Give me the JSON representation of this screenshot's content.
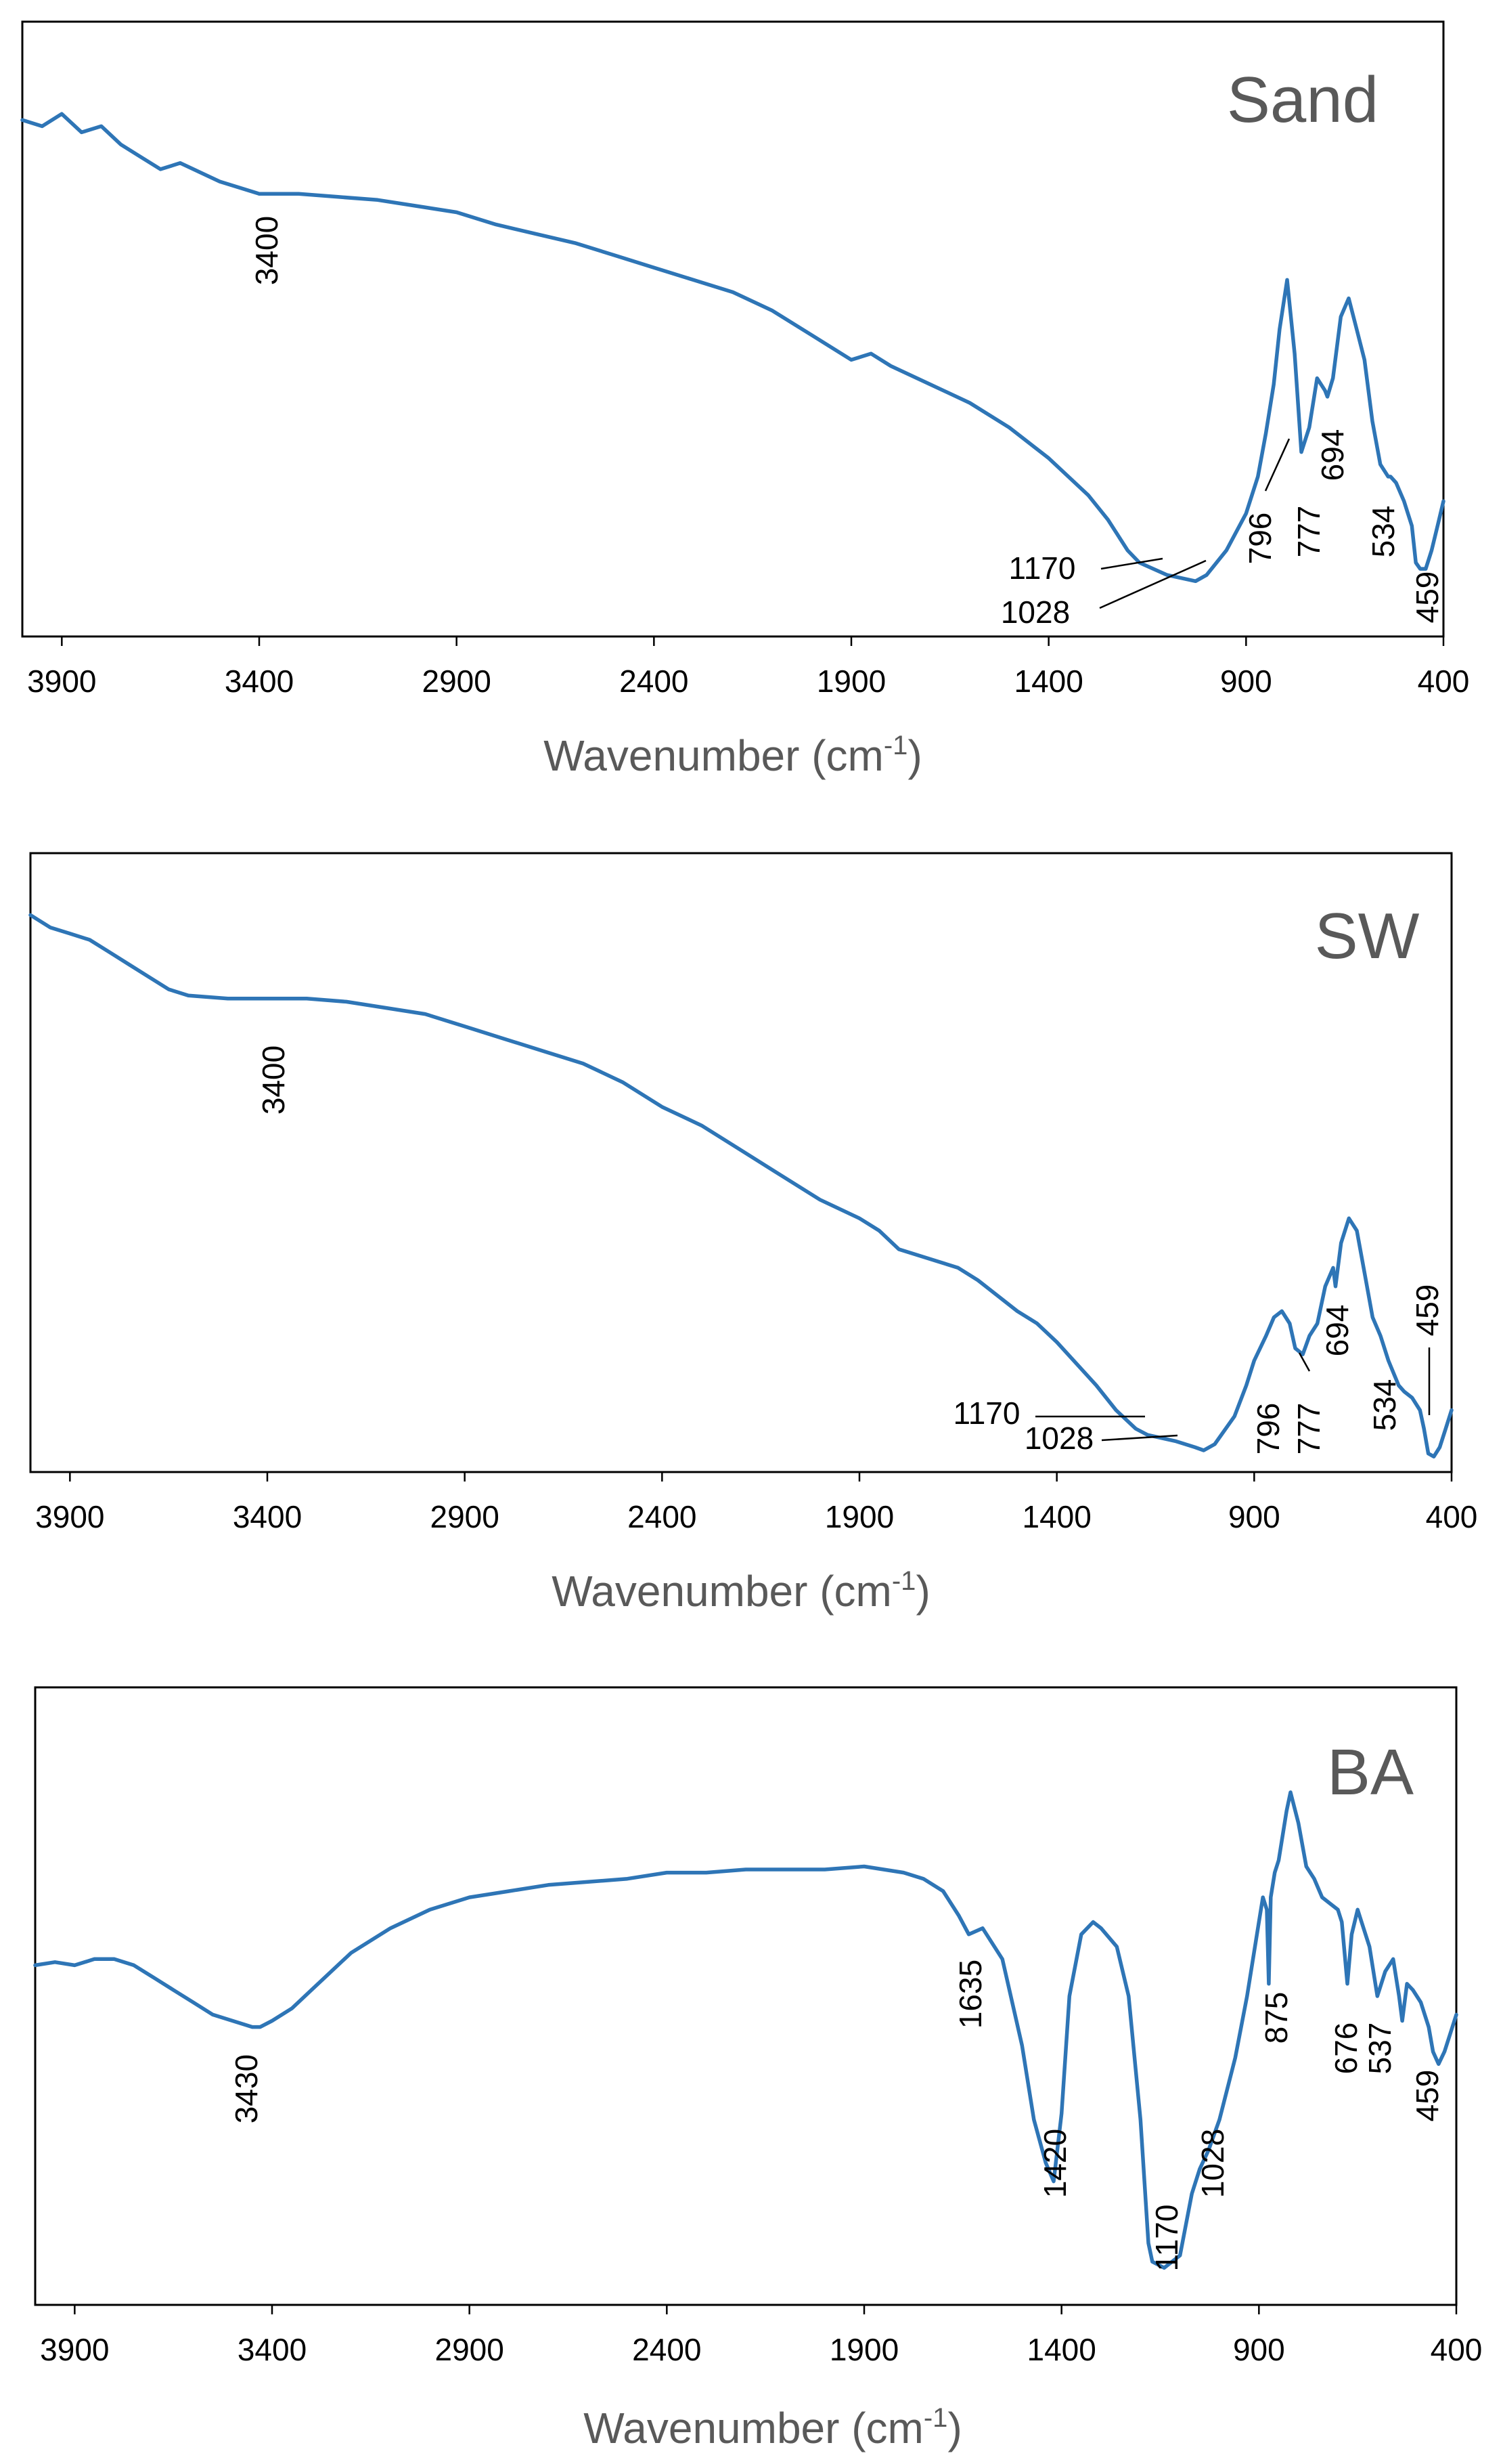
{
  "colors": {
    "series": "#2e75b6",
    "frame": "#000000",
    "text": "#000000",
    "label_gray": "#595959"
  },
  "chart_data": [
    {
      "type": "line",
      "title": "Sand",
      "xlabel": "Wavenumber (cm",
      "xlabel_sup": "-1",
      "xlabel_close": ")",
      "xlim": [
        4000,
        400
      ],
      "ylim": [
        0,
        1
      ],
      "y_axis_visible": false,
      "grid": false,
      "xticks": [
        3900,
        3400,
        2900,
        2400,
        1900,
        1400,
        900,
        400
      ],
      "xtick_labels": [
        "3900",
        "3400",
        "2900",
        "2400",
        "1900",
        "1400",
        "900",
        "400"
      ],
      "series": [
        {
          "name": "Sand",
          "x": [
            4000,
            3950,
            3900,
            3850,
            3800,
            3750,
            3700,
            3650,
            3600,
            3500,
            3400,
            3300,
            3200,
            3100,
            3000,
            2900,
            2800,
            2700,
            2600,
            2500,
            2400,
            2300,
            2200,
            2100,
            2000,
            1900,
            1850,
            1800,
            1700,
            1600,
            1500,
            1400,
            1300,
            1250,
            1200,
            1170,
            1100,
            1028,
            1000,
            950,
            900,
            870,
            850,
            830,
            815,
            796,
            777,
            760,
            740,
            720,
            700,
            694,
            680,
            660,
            640,
            620,
            600,
            580,
            560,
            540,
            534,
            520,
            500,
            480,
            470,
            459,
            445,
            430,
            415,
            400
          ],
          "y": [
            0.84,
            0.83,
            0.85,
            0.82,
            0.83,
            0.8,
            0.78,
            0.76,
            0.77,
            0.74,
            0.72,
            0.72,
            0.715,
            0.71,
            0.7,
            0.69,
            0.67,
            0.655,
            0.64,
            0.62,
            0.6,
            0.58,
            0.56,
            0.53,
            0.49,
            0.45,
            0.46,
            0.44,
            0.41,
            0.38,
            0.34,
            0.29,
            0.23,
            0.19,
            0.14,
            0.12,
            0.1,
            0.09,
            0.1,
            0.14,
            0.2,
            0.26,
            0.33,
            0.41,
            0.5,
            0.58,
            0.46,
            0.3,
            0.34,
            0.42,
            0.4,
            0.39,
            0.42,
            0.52,
            0.55,
            0.5,
            0.45,
            0.35,
            0.28,
            0.26,
            0.26,
            0.25,
            0.22,
            0.18,
            0.12,
            0.11,
            0.11,
            0.14,
            0.18,
            0.22
          ]
        }
      ],
      "annotations": [
        {
          "id": "a3400",
          "text": "3400",
          "at": 3400
        },
        {
          "id": "a1170",
          "text": "1170",
          "at": 1170
        },
        {
          "id": "a1028",
          "text": "1028",
          "at": 1028
        },
        {
          "id": "a796",
          "text": "796",
          "at": 796
        },
        {
          "id": "a777",
          "text": "777",
          "at": 777
        },
        {
          "id": "a694",
          "text": "694",
          "at": 694
        },
        {
          "id": "a534",
          "text": "534",
          "at": 534
        },
        {
          "id": "a459",
          "text": "459",
          "at": 459
        }
      ]
    },
    {
      "type": "line",
      "title": "SW",
      "xlabel": "Wavenumber (cm",
      "xlabel_sup": "-1",
      "xlabel_close": ")",
      "xlim": [
        4000,
        400
      ],
      "ylim": [
        0,
        1
      ],
      "y_axis_visible": false,
      "grid": false,
      "xticks": [
        3900,
        3400,
        2900,
        2400,
        1900,
        1400,
        900,
        400
      ],
      "xtick_labels": [
        "3900",
        "3400",
        "2900",
        "2400",
        "1900",
        "1400",
        "900",
        "400"
      ],
      "series": [
        {
          "name": "SW",
          "x": [
            4000,
            3950,
            3900,
            3850,
            3800,
            3750,
            3700,
            3650,
            3600,
            3500,
            3400,
            3300,
            3200,
            3100,
            3000,
            2900,
            2800,
            2700,
            2600,
            2500,
            2400,
            2300,
            2200,
            2100,
            2000,
            1900,
            1850,
            1800,
            1700,
            1650,
            1600,
            1500,
            1450,
            1400,
            1300,
            1250,
            1200,
            1170,
            1100,
            1050,
            1028,
            1000,
            950,
            920,
            900,
            870,
            850,
            830,
            810,
            796,
            777,
            760,
            740,
            720,
            700,
            694,
            680,
            660,
            640,
            620,
            600,
            580,
            560,
            534,
            520,
            500,
            480,
            470,
            459,
            445,
            430,
            415,
            400
          ],
          "y": [
            0.9,
            0.88,
            0.87,
            0.86,
            0.84,
            0.82,
            0.8,
            0.78,
            0.77,
            0.765,
            0.765,
            0.765,
            0.76,
            0.75,
            0.74,
            0.72,
            0.7,
            0.68,
            0.66,
            0.63,
            0.59,
            0.56,
            0.52,
            0.48,
            0.44,
            0.41,
            0.39,
            0.36,
            0.34,
            0.33,
            0.31,
            0.26,
            0.24,
            0.21,
            0.14,
            0.1,
            0.07,
            0.06,
            0.05,
            0.04,
            0.035,
            0.045,
            0.09,
            0.14,
            0.18,
            0.22,
            0.25,
            0.26,
            0.24,
            0.2,
            0.19,
            0.22,
            0.24,
            0.3,
            0.33,
            0.3,
            0.37,
            0.41,
            0.39,
            0.32,
            0.25,
            0.22,
            0.18,
            0.14,
            0.13,
            0.12,
            0.1,
            0.07,
            0.03,
            0.025,
            0.04,
            0.07,
            0.1
          ]
        }
      ],
      "annotations": [
        {
          "id": "a3400",
          "text": "3400",
          "at": 3400
        },
        {
          "id": "a1170",
          "text": "1170",
          "at": 1170
        },
        {
          "id": "a1028",
          "text": "1028",
          "at": 1028
        },
        {
          "id": "a796",
          "text": "796",
          "at": 796
        },
        {
          "id": "a777",
          "text": "777",
          "at": 777
        },
        {
          "id": "a694",
          "text": "694",
          "at": 694
        },
        {
          "id": "a534",
          "text": "534",
          "at": 534
        },
        {
          "id": "a459",
          "text": "459",
          "at": 459
        }
      ]
    },
    {
      "type": "line",
      "title": "BA",
      "xlabel": "Wavenumber  (cm",
      "xlabel_sup": "-1",
      "xlabel_close": ")",
      "xlim": [
        4000,
        400
      ],
      "ylim": [
        0,
        1
      ],
      "y_axis_visible": false,
      "grid": false,
      "xticks": [
        3900,
        3400,
        2900,
        2400,
        1900,
        1400,
        900,
        400
      ],
      "xtick_labels": [
        "3900",
        "3400",
        "2900",
        "2400",
        "1900",
        "1400",
        "900",
        "400"
      ],
      "series": [
        {
          "name": "BA",
          "x": [
            4000,
            3950,
            3900,
            3850,
            3800,
            3750,
            3700,
            3650,
            3600,
            3550,
            3500,
            3450,
            3430,
            3400,
            3350,
            3300,
            3200,
            3100,
            3000,
            2900,
            2800,
            2700,
            2600,
            2500,
            2400,
            2300,
            2200,
            2100,
            2000,
            1900,
            1800,
            1750,
            1700,
            1660,
            1635,
            1600,
            1550,
            1500,
            1470,
            1440,
            1420,
            1400,
            1380,
            1350,
            1320,
            1300,
            1260,
            1230,
            1200,
            1180,
            1170,
            1140,
            1100,
            1070,
            1050,
            1028,
            1000,
            960,
            930,
            900,
            890,
            880,
            875,
            870,
            860,
            850,
            830,
            820,
            800,
            780,
            760,
            740,
            720,
            700,
            690,
            676,
            665,
            650,
            640,
            620,
            600,
            580,
            560,
            545,
            537,
            525,
            510,
            490,
            470,
            459,
            445,
            430,
            415,
            400
          ],
          "y": [
            0.55,
            0.555,
            0.55,
            0.56,
            0.56,
            0.55,
            0.53,
            0.51,
            0.49,
            0.47,
            0.46,
            0.45,
            0.45,
            0.46,
            0.48,
            0.51,
            0.57,
            0.61,
            0.64,
            0.66,
            0.67,
            0.68,
            0.685,
            0.69,
            0.7,
            0.7,
            0.705,
            0.705,
            0.705,
            0.71,
            0.7,
            0.69,
            0.67,
            0.63,
            0.6,
            0.61,
            0.56,
            0.42,
            0.3,
            0.23,
            0.2,
            0.31,
            0.5,
            0.6,
            0.62,
            0.61,
            0.58,
            0.5,
            0.3,
            0.1,
            0.07,
            0.06,
            0.08,
            0.18,
            0.22,
            0.25,
            0.3,
            0.4,
            0.5,
            0.62,
            0.66,
            0.64,
            0.52,
            0.66,
            0.7,
            0.72,
            0.8,
            0.83,
            0.78,
            0.71,
            0.69,
            0.66,
            0.65,
            0.64,
            0.62,
            0.52,
            0.6,
            0.64,
            0.62,
            0.58,
            0.5,
            0.54,
            0.56,
            0.5,
            0.46,
            0.52,
            0.51,
            0.49,
            0.45,
            0.41,
            0.39,
            0.41,
            0.44,
            0.47
          ]
        }
      ],
      "annotations": [
        {
          "id": "a3430",
          "text": "3430",
          "at": 3430
        },
        {
          "id": "a1635",
          "text": "1635",
          "at": 1635
        },
        {
          "id": "a1420",
          "text": "1420",
          "at": 1420
        },
        {
          "id": "a1170",
          "text": "1170",
          "at": 1170
        },
        {
          "id": "a1028",
          "text": "1028",
          "at": 1028
        },
        {
          "id": "a875",
          "text": "875",
          "at": 875
        },
        {
          "id": "a676",
          "text": "676",
          "at": 676
        },
        {
          "id": "a537",
          "text": "537",
          "at": 537
        },
        {
          "id": "a459",
          "text": "459",
          "at": 459
        }
      ]
    }
  ]
}
